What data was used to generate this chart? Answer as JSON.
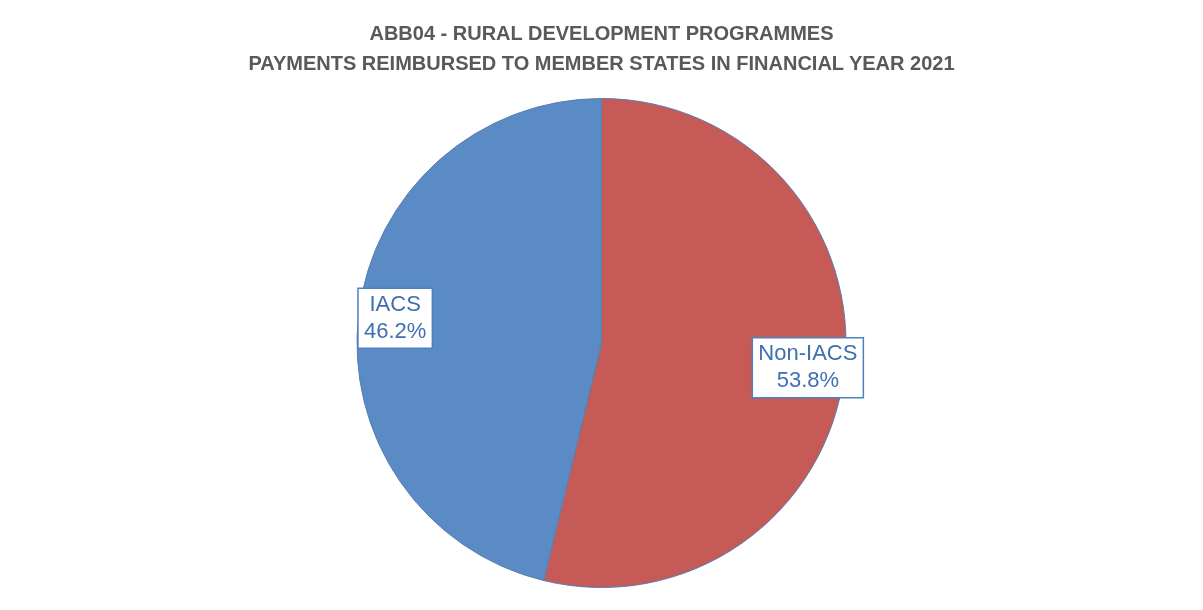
{
  "chart_data": {
    "type": "pie",
    "title": "ABB04 - RURAL DEVELOPMENT PROGRAMMES",
    "subtitle": "PAYMENTS REIMBURSED TO MEMBER STATES IN FINANCIAL YEAR 2021",
    "categories": [
      "Non-IACS",
      "IACS"
    ],
    "values": [
      53.8,
      46.2
    ],
    "colors": [
      "#c55a57",
      "#5b8bc4"
    ],
    "value_labels": [
      "53.8%",
      "46.2%"
    ],
    "legend": false
  }
}
